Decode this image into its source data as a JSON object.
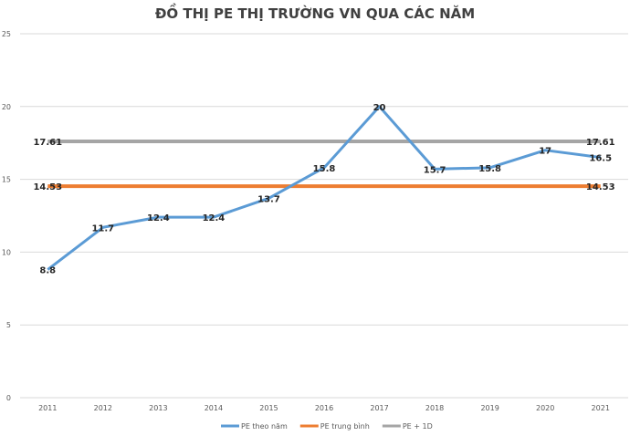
{
  "chart_data": {
    "type": "line",
    "title": "ĐỒ THỊ PE THỊ TRƯỜNG VN QUA CÁC NĂM",
    "categories": [
      "2011",
      "2012",
      "2013",
      "2014",
      "2015",
      "2016",
      "2017",
      "2018",
      "2019",
      "2020",
      "2021"
    ],
    "ylim": [
      0,
      25
    ],
    "yticks": [
      0,
      5,
      10,
      15,
      20,
      25
    ],
    "grid": true,
    "legend_position": "bottom",
    "series": [
      {
        "name": "PE theo năm",
        "color": "#5B9BD5",
        "values": [
          8.8,
          11.7,
          12.4,
          12.4,
          13.7,
          15.8,
          20,
          15.7,
          15.8,
          17,
          16.5
        ],
        "labels": [
          "8.8",
          "11.7",
          "12.4",
          "12.4",
          "13.7",
          "15.8",
          "20",
          "15.7",
          "15.8",
          "17",
          "16.5"
        ]
      },
      {
        "name": "PE trung bình",
        "color": "#ED7D31",
        "values": [
          14.53,
          14.53,
          14.53,
          14.53,
          14.53,
          14.53,
          14.53,
          14.53,
          14.53,
          14.53,
          14.53
        ],
        "end_label": "14.53"
      },
      {
        "name": "PE + 1D",
        "color": "#A5A5A5",
        "values": [
          17.61,
          17.61,
          17.61,
          17.61,
          17.61,
          17.61,
          17.61,
          17.61,
          17.61,
          17.61,
          17.61
        ],
        "end_label": "17.61"
      }
    ]
  }
}
